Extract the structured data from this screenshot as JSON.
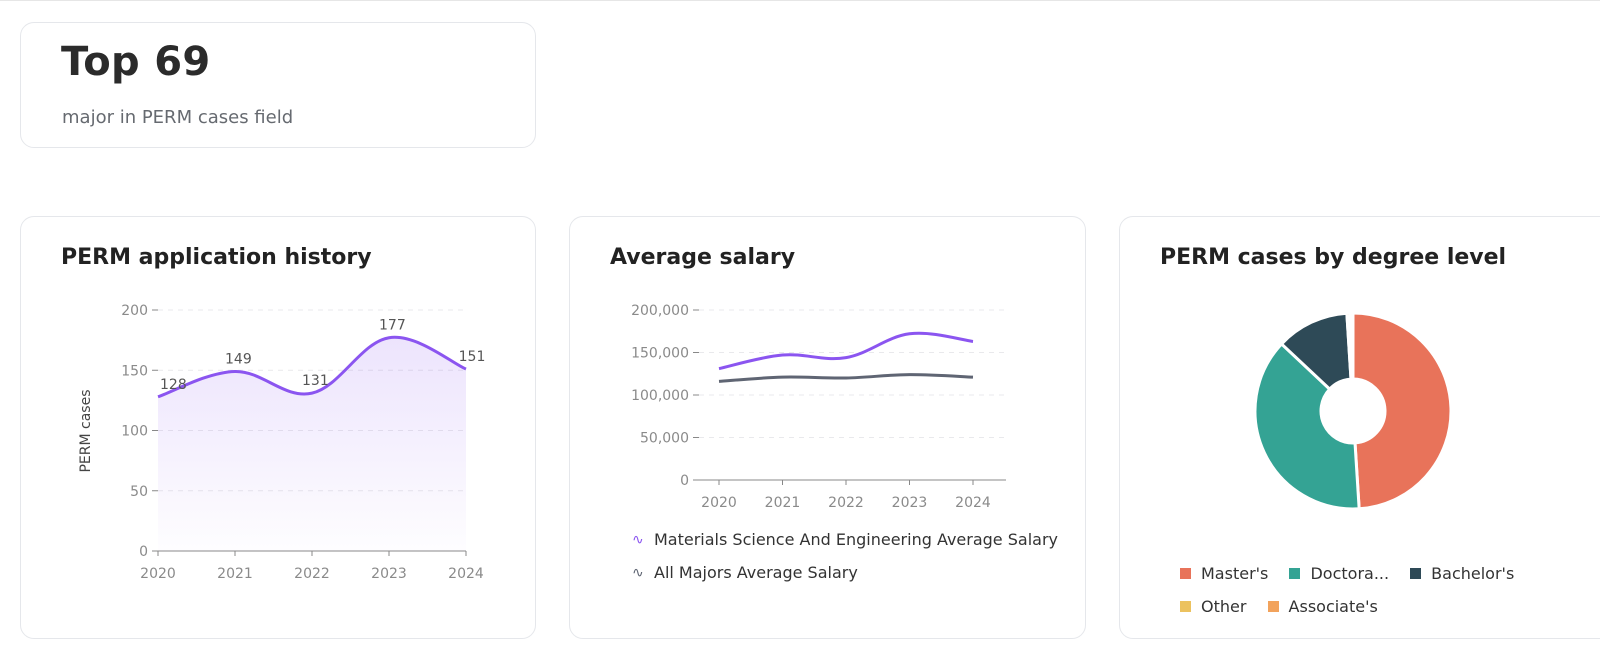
{
  "summary": {
    "rank": "Top 69",
    "caption": "major in PERM cases field"
  },
  "history": {
    "title": "PERM application history",
    "chart_data": {
      "type": "area",
      "title": "PERM application history",
      "xlabel": "",
      "ylabel": "PERM cases",
      "categories": [
        "2020",
        "2021",
        "2022",
        "2023",
        "2024"
      ],
      "values": [
        128,
        149,
        131,
        177,
        151
      ],
      "ylim": [
        0,
        200
      ],
      "yticks": [
        "0",
        "50",
        "100",
        "150",
        "200"
      ],
      "grid": true,
      "color": "#8b55f0"
    }
  },
  "salary": {
    "title": "Average salary",
    "chart_data": {
      "type": "line",
      "title": "Average salary",
      "categories": [
        "2020",
        "2021",
        "2022",
        "2023",
        "2024"
      ],
      "ylim": [
        0,
        200000
      ],
      "yticks": [
        "0",
        "50,000",
        "100,000",
        "150,000",
        "200,000"
      ],
      "grid": true,
      "legend_position": "bottom",
      "series": [
        {
          "name": "Materials Science And Engineering Average Salary",
          "values": [
            131000,
            147000,
            144000,
            172000,
            163000
          ],
          "color": "#8b55f0"
        },
        {
          "name": "All Majors Average Salary",
          "values": [
            116000,
            121000,
            120000,
            124000,
            121000
          ],
          "color": "#5f6573"
        }
      ]
    }
  },
  "degree": {
    "title": "PERM cases by degree level",
    "chart_data": {
      "type": "pie",
      "title": "PERM cases by degree level",
      "legend_position": "bottom",
      "slices": [
        {
          "label": "Master's",
          "value": 49,
          "color": "#e8735a"
        },
        {
          "label": "Doctora...",
          "value": 38,
          "color": "#34a394"
        },
        {
          "label": "Bachelor's",
          "value": 12,
          "color": "#2e4a57"
        },
        {
          "label": "Other",
          "value": 0.5,
          "color": "#ecc25f"
        },
        {
          "label": "Associate's",
          "value": 0.5,
          "color": "#f2a35c"
        }
      ]
    }
  }
}
